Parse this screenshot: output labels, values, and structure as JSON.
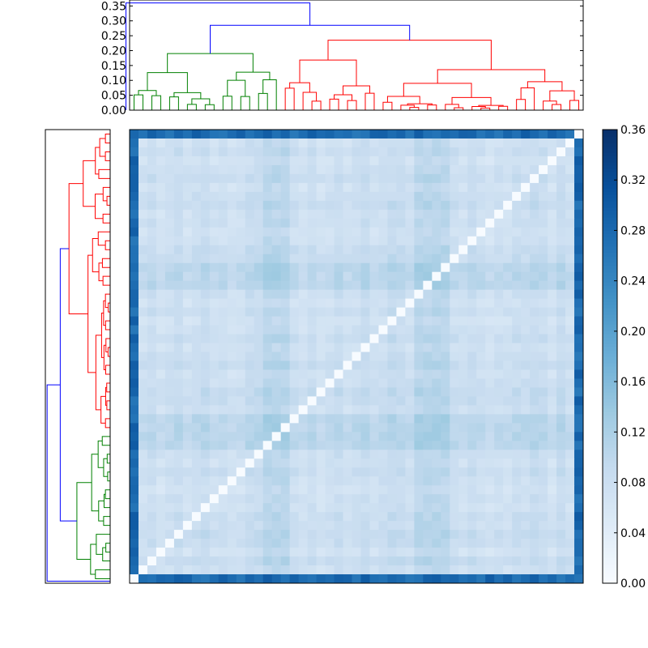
{
  "chart_data": [
    {
      "type": "dendrogram",
      "name": "top-dendrogram",
      "orientation": "top",
      "ylim": [
        0,
        0.37
      ],
      "ticks": [
        {
          "value": 0.0,
          "label": "0.00"
        },
        {
          "value": 0.05,
          "label": "0.05"
        },
        {
          "value": 0.1,
          "label": "0.10"
        },
        {
          "value": 0.15,
          "label": "0.15"
        },
        {
          "value": 0.2,
          "label": "0.20"
        },
        {
          "value": 0.25,
          "label": "0.25"
        },
        {
          "value": 0.3,
          "label": "0.30"
        },
        {
          "value": 0.35,
          "label": "0.35"
        }
      ],
      "leaf_count": 51,
      "clusters": [
        {
          "name": "green cluster",
          "color": "#008000",
          "leaf_range": [
            0,
            16
          ],
          "merge_height": 0.19
        },
        {
          "name": "red cluster",
          "color": "#ff0000",
          "leaf_range": [
            17,
            50
          ],
          "merge_height": 0.235
        },
        {
          "name": "link",
          "color": "#0000ff",
          "merge_heights": [
            0.285,
            0.36
          ]
        }
      ]
    },
    {
      "type": "dendrogram",
      "name": "left-dendrogram",
      "orientation": "left",
      "leaf_count": 51,
      "clusters": [
        {
          "name": "red cluster",
          "color": "#ff0000",
          "leaf_range": [
            0,
            33
          ]
        },
        {
          "name": "green cluster",
          "color": "#008000",
          "leaf_range": [
            34,
            50
          ]
        },
        {
          "name": "link",
          "color": "#0000ff"
        }
      ]
    },
    {
      "type": "heatmap",
      "name": "distance-matrix",
      "rows": 51,
      "cols": 51,
      "vmin": 0.0,
      "vmax": 0.36,
      "colormap": "Blues",
      "diagonal_value": 0.0,
      "note": "symmetric pairwise distance matrix, leaves ordered by dendrogram"
    },
    {
      "type": "colorbar",
      "name": "colorbar",
      "vmin": 0.0,
      "vmax": 0.36,
      "ticks": [
        {
          "value": 0.0,
          "label": "0.00"
        },
        {
          "value": 0.04,
          "label": "0.04"
        },
        {
          "value": 0.08,
          "label": "0.08"
        },
        {
          "value": 0.12,
          "label": "0.12"
        },
        {
          "value": 0.16,
          "label": "0.16"
        },
        {
          "value": 0.2,
          "label": "0.20"
        },
        {
          "value": 0.24,
          "label": "0.24"
        },
        {
          "value": 0.28,
          "label": "0.28"
        },
        {
          "value": 0.32,
          "label": "0.32"
        },
        {
          "value": 0.36,
          "label": "0.36"
        }
      ]
    }
  ],
  "colors": {
    "green": "#008000",
    "red": "#ff0000",
    "blue": "#0000ff",
    "axis": "#000000",
    "background": "#ffffff"
  }
}
